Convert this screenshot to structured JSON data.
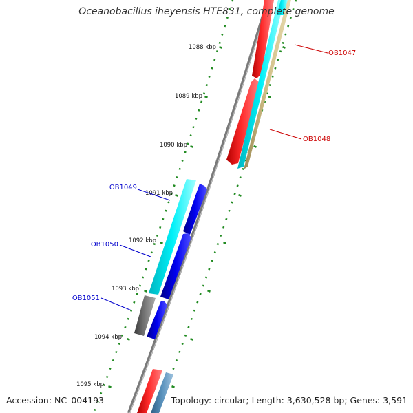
{
  "title": "Oceanobacillus iheyensis HTE831, complete genome",
  "footer": {
    "accession": "Accession: NC_004193",
    "summary": "Topology: circular; Length: 3,630,528 bp; Genes: 3,591"
  },
  "ticks": [
    {
      "label": "1088 kbp"
    },
    {
      "label": "1089 kbp"
    },
    {
      "label": "1090 kbp"
    },
    {
      "label": "1091 kbp"
    },
    {
      "label": "1092 kbp"
    },
    {
      "label": "1093 kbp"
    },
    {
      "label": "1094 kbp"
    },
    {
      "label": "1095 kbp"
    }
  ],
  "gene_labels": [
    {
      "label": "OB1047",
      "color": "#cc0000"
    },
    {
      "label": "OB1048",
      "color": "#cc0000"
    },
    {
      "label": "OB1049",
      "color": "#0000cc"
    },
    {
      "label": "OB1050",
      "color": "#0000cc"
    },
    {
      "label": "OB1051",
      "color": "#0000cc"
    }
  ],
  "colors": {
    "backbone": "#777777",
    "tick_marks": "#228b22",
    "cds_red": "#ff0000",
    "cds_cyan": "#00e5ee",
    "cds_blue": "#0000ee",
    "cds_gray": "#666666",
    "cds_tan": "#c8b47a",
    "cds_steel": "#4f86b0"
  }
}
